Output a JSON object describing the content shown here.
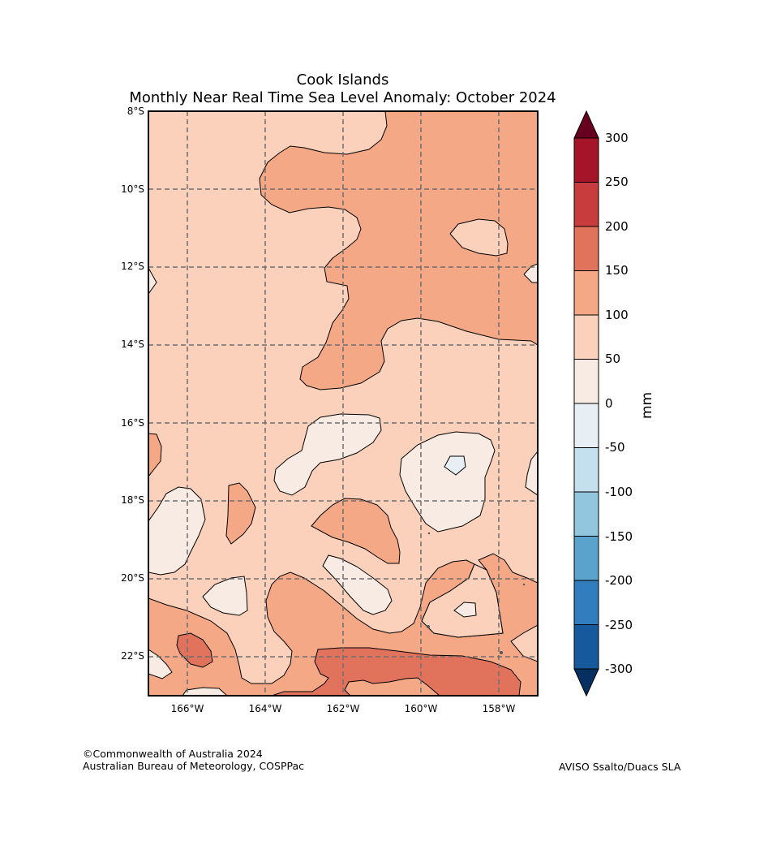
{
  "title": "Cook Islands",
  "subtitle": "Monthly Near Real Time Sea Level Anomaly: October 2024",
  "map": {
    "lat_labels": [
      "8°S",
      "10°S",
      "12°S",
      "14°S",
      "16°S",
      "18°S",
      "20°S",
      "22°S"
    ],
    "lon_labels": [
      "166°W",
      "164°W",
      "162°W",
      "160°W",
      "158°W"
    ],
    "extent": {
      "lon_min": -167.0,
      "lon_max": -157.0,
      "lat_min": -23.0,
      "lat_max": -8.0
    },
    "gridlines": "dashed grey"
  },
  "colorbar": {
    "unit": "mm",
    "tick_labels": [
      "300",
      "250",
      "200",
      "150",
      "100",
      "50",
      "0",
      "-50",
      "-100",
      "-150",
      "-200",
      "-250",
      "-300"
    ],
    "colors_top_to_bottom": [
      "#a51429",
      "#c83c3d",
      "#e1735d",
      "#f4a886",
      "#fbd1bb",
      "#f8ebe4",
      "#e7eef4",
      "#c4dfed",
      "#92c5de",
      "#5aa3cd",
      "#317dbd",
      "#17599d"
    ],
    "over_color": "#67001f",
    "under_color": "#053061"
  },
  "colors": {
    "c50_100": "#fbd1bb",
    "c100_150": "#f4a886",
    "c150_200": "#e1735d",
    "c0_50": "#f8ebe4",
    "cneg": "#e7eef4"
  },
  "footer": {
    "copyright": "©Commonwealth of Australia 2024",
    "agency": "Australian Bureau of Meteorology, COSPPac",
    "source": "AVISO Ssalto/Duacs SLA"
  }
}
